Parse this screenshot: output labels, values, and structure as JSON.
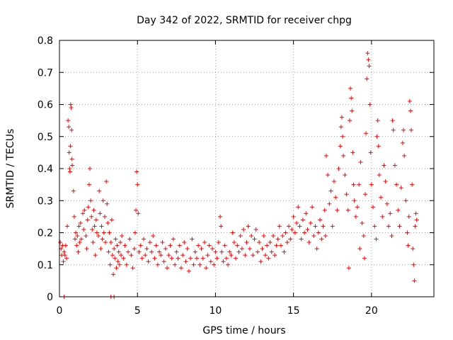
{
  "chart_data": {
    "type": "scatter",
    "title": "Day 342 of 2022, SRMTID for receiver chpg",
    "xlabel": "GPS time / hours",
    "ylabel": "SRMTID / TECUs",
    "xlim": [
      0,
      24
    ],
    "ylim": [
      0,
      0.8
    ],
    "xticks": [
      0,
      5,
      10,
      15,
      20
    ],
    "xtick_labels": [
      "0",
      "5",
      "10",
      "15",
      "20"
    ],
    "yticks": [
      0,
      0.1,
      0.2,
      0.3,
      0.4,
      0.5,
      0.6,
      0.7,
      0.8
    ],
    "ytick_labels": [
      "0",
      "0.1",
      "0.2",
      "0.3",
      "0.4",
      "0.5",
      "0.6",
      "0.7",
      "0.8"
    ],
    "grid": true,
    "marker": "+",
    "color": "#ff0000",
    "series": [
      {
        "name": "SRMTID",
        "points": [
          [
            0.05,
            0.17
          ],
          [
            0.1,
            0.15
          ],
          [
            0.15,
            0.13
          ],
          [
            0.2,
            0.16
          ],
          [
            0.25,
            0.11
          ],
          [
            0.3,
            0.14
          ],
          [
            0.35,
            0.13
          ],
          [
            0.4,
            0.16
          ],
          [
            0.45,
            0.12
          ],
          [
            0.5,
            0.22
          ],
          [
            0.55,
            0.55
          ],
          [
            0.6,
            0.53
          ],
          [
            0.62,
            0.45
          ],
          [
            0.65,
            0.4
          ],
          [
            0.68,
            0.39
          ],
          [
            0.7,
            0.47
          ],
          [
            0.72,
            0.6
          ],
          [
            0.75,
            0.59
          ],
          [
            0.78,
            0.52
          ],
          [
            0.8,
            0.43
          ],
          [
            0.82,
            0.41
          ],
          [
            0.9,
            0.33
          ],
          [
            0.95,
            0.25
          ],
          [
            1.0,
            0.18
          ],
          [
            1.05,
            0.2
          ],
          [
            1.1,
            0.16
          ],
          [
            1.15,
            0.19
          ],
          [
            1.2,
            0.14
          ],
          [
            1.25,
            0.22
          ],
          [
            1.3,
            0.17
          ],
          [
            1.35,
            0.23
          ],
          [
            1.4,
            0.18
          ],
          [
            1.5,
            0.26
          ],
          [
            1.55,
            0.21
          ],
          [
            1.6,
            0.27
          ],
          [
            1.7,
            0.19
          ],
          [
            1.75,
            0.15
          ],
          [
            1.8,
            0.24
          ],
          [
            1.85,
            0.28
          ],
          [
            1.9,
            0.35
          ],
          [
            1.95,
            0.4
          ],
          [
            2.0,
            0.3
          ],
          [
            2.05,
            0.25
          ],
          [
            2.1,
            0.21
          ],
          [
            2.15,
            0.17
          ],
          [
            2.2,
            0.27
          ],
          [
            2.25,
            0.22
          ],
          [
            2.3,
            0.13
          ],
          [
            2.35,
            0.24
          ],
          [
            2.4,
            0.2
          ],
          [
            2.5,
            0.19
          ],
          [
            2.55,
            0.33
          ],
          [
            2.6,
            0.26
          ],
          [
            2.65,
            0.15
          ],
          [
            2.7,
            0.22
          ],
          [
            2.75,
            0.18
          ],
          [
            2.8,
            0.3
          ],
          [
            2.85,
            0.2
          ],
          [
            2.9,
            0.25
          ],
          [
            2.95,
            0.17
          ],
          [
            3.0,
            0.36
          ],
          [
            3.05,
            0.29
          ],
          [
            3.1,
            0.23
          ],
          [
            3.15,
            0.14
          ],
          [
            3.2,
            0.2
          ],
          [
            3.25,
            0.1
          ],
          [
            3.3,
            0.17
          ],
          [
            3.35,
            0.24
          ],
          [
            3.4,
            0.13
          ],
          [
            3.45,
            0.07
          ],
          [
            3.5,
            0.15
          ],
          [
            3.55,
            0.12
          ],
          [
            3.6,
            0.18
          ],
          [
            3.65,
            0.09
          ],
          [
            3.7,
            0.16
          ],
          [
            3.75,
            0.11
          ],
          [
            3.8,
            0.14
          ],
          [
            3.85,
            0.1
          ],
          [
            3.9,
            0.17
          ],
          [
            3.95,
            0.13
          ],
          [
            4.0,
            0.19
          ],
          [
            4.1,
            0.12
          ],
          [
            4.2,
            0.16
          ],
          [
            4.3,
            0.1
          ],
          [
            4.4,
            0.14
          ],
          [
            4.5,
            0.18
          ],
          [
            4.6,
            0.13
          ],
          [
            4.7,
            0.09
          ],
          [
            4.8,
            0.15
          ],
          [
            4.85,
            0.2
          ],
          [
            4.9,
            0.27
          ],
          [
            4.95,
            0.39
          ],
          [
            5.0,
            0.35
          ],
          [
            5.05,
            0.26
          ],
          [
            5.1,
            0.14
          ],
          [
            5.2,
            0.16
          ],
          [
            5.3,
            0.12
          ],
          [
            5.4,
            0.18
          ],
          [
            5.5,
            0.13
          ],
          [
            5.6,
            0.15
          ],
          [
            5.7,
            0.11
          ],
          [
            5.8,
            0.17
          ],
          [
            5.9,
            0.14
          ],
          [
            6.0,
            0.19
          ],
          [
            6.1,
            0.12
          ],
          [
            6.2,
            0.16
          ],
          [
            6.3,
            0.1
          ],
          [
            6.4,
            0.14
          ],
          [
            6.5,
            0.13
          ],
          [
            6.6,
            0.17
          ],
          [
            6.7,
            0.11
          ],
          [
            6.8,
            0.15
          ],
          [
            6.9,
            0.09
          ],
          [
            7.0,
            0.13
          ],
          [
            7.1,
            0.16
          ],
          [
            7.2,
            0.12
          ],
          [
            7.3,
            0.18
          ],
          [
            7.4,
            0.1
          ],
          [
            7.5,
            0.14
          ],
          [
            7.6,
            0.12
          ],
          [
            7.7,
            0.16
          ],
          [
            7.8,
            0.09
          ],
          [
            7.9,
            0.13
          ],
          [
            8.0,
            0.17
          ],
          [
            8.1,
            0.11
          ],
          [
            8.2,
            0.15
          ],
          [
            8.3,
            0.08
          ],
          [
            8.4,
            0.12
          ],
          [
            8.5,
            0.18
          ],
          [
            8.6,
            0.1
          ],
          [
            8.7,
            0.14
          ],
          [
            8.8,
            0.12
          ],
          [
            8.9,
            0.16
          ],
          [
            9.0,
            0.1
          ],
          [
            9.1,
            0.15
          ],
          [
            9.2,
            0.12
          ],
          [
            9.3,
            0.17
          ],
          [
            9.4,
            0.09
          ],
          [
            9.5,
            0.13
          ],
          [
            9.6,
            0.16
          ],
          [
            9.7,
            0.11
          ],
          [
            9.8,
            0.15
          ],
          [
            9.9,
            0.1
          ],
          [
            10.0,
            0.14
          ],
          [
            10.1,
            0.12
          ],
          [
            10.2,
            0.17
          ],
          [
            10.3,
            0.25
          ],
          [
            10.35,
            0.22
          ],
          [
            10.4,
            0.14
          ],
          [
            10.5,
            0.11
          ],
          [
            10.6,
            0.16
          ],
          [
            10.7,
            0.12
          ],
          [
            10.8,
            0.1
          ],
          [
            10.9,
            0.14
          ],
          [
            11.0,
            0.13
          ],
          [
            11.1,
            0.2
          ],
          [
            11.2,
            0.17
          ],
          [
            11.3,
            0.12
          ],
          [
            11.4,
            0.16
          ],
          [
            11.5,
            0.14
          ],
          [
            11.6,
            0.19
          ],
          [
            11.7,
            0.15
          ],
          [
            11.8,
            0.21
          ],
          [
            11.9,
            0.13
          ],
          [
            12.0,
            0.17
          ],
          [
            12.1,
            0.22
          ],
          [
            12.2,
            0.15
          ],
          [
            12.3,
            0.19
          ],
          [
            12.4,
            0.13
          ],
          [
            12.5,
            0.18
          ],
          [
            12.6,
            0.21
          ],
          [
            12.7,
            0.14
          ],
          [
            12.8,
            0.17
          ],
          [
            12.9,
            0.11
          ],
          [
            13.0,
            0.15
          ],
          [
            13.1,
            0.19
          ],
          [
            13.2,
            0.13
          ],
          [
            13.3,
            0.16
          ],
          [
            13.4,
            0.12
          ],
          [
            13.5,
            0.17
          ],
          [
            13.6,
            0.14
          ],
          [
            13.7,
            0.19
          ],
          [
            13.8,
            0.13
          ],
          [
            13.9,
            0.16
          ],
          [
            14.0,
            0.18
          ],
          [
            14.1,
            0.22
          ],
          [
            14.2,
            0.16
          ],
          [
            14.3,
            0.19
          ],
          [
            14.4,
            0.14
          ],
          [
            14.5,
            0.2
          ],
          [
            14.6,
            0.17
          ],
          [
            14.7,
            0.22
          ],
          [
            14.8,
            0.18
          ],
          [
            14.9,
            0.21
          ],
          [
            15.0,
            0.25
          ],
          [
            15.1,
            0.2
          ],
          [
            15.2,
            0.23
          ],
          [
            15.3,
            0.28
          ],
          [
            15.4,
            0.22
          ],
          [
            15.5,
            0.18
          ],
          [
            15.6,
            0.24
          ],
          [
            15.7,
            0.2
          ],
          [
            15.8,
            0.26
          ],
          [
            15.9,
            0.21
          ],
          [
            16.0,
            0.17
          ],
          [
            16.1,
            0.23
          ],
          [
            16.2,
            0.28
          ],
          [
            16.3,
            0.19
          ],
          [
            16.4,
            0.22
          ],
          [
            16.5,
            0.15
          ],
          [
            16.6,
            0.2
          ],
          [
            16.7,
            0.24
          ],
          [
            16.8,
            0.18
          ],
          [
            16.9,
            0.22
          ],
          [
            17.0,
            0.27
          ],
          [
            17.05,
            0.19
          ],
          [
            17.1,
            0.44
          ],
          [
            17.2,
            0.38
          ],
          [
            17.3,
            0.29
          ],
          [
            17.4,
            0.33
          ],
          [
            17.5,
            0.22
          ],
          [
            17.6,
            0.36
          ],
          [
            17.7,
            0.31
          ],
          [
            17.8,
            0.27
          ],
          [
            17.9,
            0.4
          ],
          [
            18.0,
            0.47
          ],
          [
            18.05,
            0.53
          ],
          [
            18.1,
            0.56
          ],
          [
            18.15,
            0.5
          ],
          [
            18.2,
            0.44
          ],
          [
            18.3,
            0.38
          ],
          [
            18.4,
            0.32
          ],
          [
            18.5,
            0.27
          ],
          [
            18.55,
            0.09
          ],
          [
            18.6,
            0.55
          ],
          [
            18.65,
            0.65
          ],
          [
            18.7,
            0.62
          ],
          [
            18.75,
            0.58
          ],
          [
            18.8,
            0.45
          ],
          [
            18.85,
            0.35
          ],
          [
            18.9,
            0.3
          ],
          [
            19.0,
            0.25
          ],
          [
            19.1,
            0.28
          ],
          [
            19.2,
            0.35
          ],
          [
            19.25,
            0.15
          ],
          [
            19.3,
            0.42
          ],
          [
            19.4,
            0.23
          ],
          [
            19.5,
            0.19
          ],
          [
            19.55,
            0.12
          ],
          [
            19.6,
            0.32
          ],
          [
            19.65,
            0.51
          ],
          [
            19.7,
            0.68
          ],
          [
            19.75,
            0.76
          ],
          [
            19.8,
            0.74
          ],
          [
            19.85,
            0.72
          ],
          [
            19.9,
            0.6
          ],
          [
            19.95,
            0.45
          ],
          [
            20.0,
            0.35
          ],
          [
            20.1,
            0.28
          ],
          [
            20.2,
            0.22
          ],
          [
            20.3,
            0.18
          ],
          [
            20.35,
            0.5
          ],
          [
            20.4,
            0.55
          ],
          [
            20.45,
            0.47
          ],
          [
            20.5,
            0.38
          ],
          [
            20.6,
            0.31
          ],
          [
            20.7,
            0.25
          ],
          [
            20.8,
            0.41
          ],
          [
            20.9,
            0.36
          ],
          [
            21.0,
            0.29
          ],
          [
            21.1,
            0.22
          ],
          [
            21.2,
            0.26
          ],
          [
            21.3,
            0.19
          ],
          [
            21.35,
            0.55
          ],
          [
            21.4,
            0.52
          ],
          [
            21.5,
            0.41
          ],
          [
            21.6,
            0.35
          ],
          [
            21.7,
            0.27
          ],
          [
            21.8,
            0.22
          ],
          [
            21.9,
            0.34
          ],
          [
            22.0,
            0.48
          ],
          [
            22.05,
            0.52
          ],
          [
            22.1,
            0.44
          ],
          [
            22.2,
            0.3
          ],
          [
            22.3,
            0.2
          ],
          [
            22.35,
            0.16
          ],
          [
            22.4,
            0.25
          ],
          [
            22.45,
            0.61
          ],
          [
            22.5,
            0.58
          ],
          [
            22.55,
            0.52
          ],
          [
            22.6,
            0.35
          ],
          [
            22.65,
            0.15
          ],
          [
            22.7,
            0.1
          ],
          [
            22.75,
            0.05
          ],
          [
            22.8,
            0.22
          ],
          [
            22.85,
            0.26
          ],
          [
            22.9,
            0.24
          ],
          [
            0.3,
            0.0
          ],
          [
            3.3,
            0.0
          ],
          [
            3.5,
            0.0
          ]
        ]
      }
    ]
  }
}
